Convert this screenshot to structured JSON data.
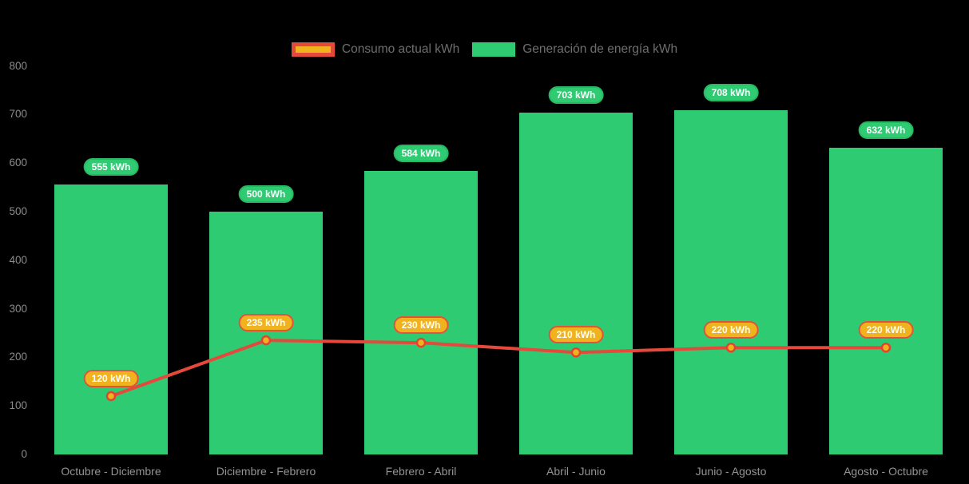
{
  "chart_data": {
    "type": "bar",
    "subtype": "bar-and-line combo",
    "categories": [
      "Octubre - Diciembre",
      "Diciembre - Febrero",
      "Febrero - Abril",
      "Abril - Junio",
      "Junio - Agosto",
      "Agosto - Octubre"
    ],
    "series": [
      {
        "name": "Consumo actual kWh",
        "type": "line",
        "values": [
          120,
          235,
          230,
          210,
          220,
          220
        ],
        "labels": [
          "120 kWh",
          "235 kWh",
          "230 kWh",
          "210 kWh",
          "220 kWh",
          "220 kWh"
        ],
        "line_color": "#e5493c",
        "marker_fill": "#f1b31d",
        "marker_border": "#e04433",
        "label_bg": "#f1b31d",
        "label_border": "#e0543c"
      },
      {
        "name": "Generación de energía kWh",
        "type": "bar",
        "values": [
          555,
          500,
          584,
          703,
          708,
          632
        ],
        "labels": [
          "555 kWh",
          "500 kWh",
          "584 kWh",
          "703 kWh",
          "708 kWh",
          "632 kWh"
        ],
        "bar_color": "#2ecb72",
        "label_bg": "#2ecb72",
        "label_border": "#28b862"
      }
    ],
    "unit": "kWh",
    "ylim": [
      0,
      800
    ],
    "yticks": [
      0,
      100,
      200,
      300,
      400,
      500,
      600,
      700,
      800
    ],
    "grid": false,
    "legend_position": "top",
    "background": "#000000",
    "axis_text_color": "#8b8b8b"
  }
}
